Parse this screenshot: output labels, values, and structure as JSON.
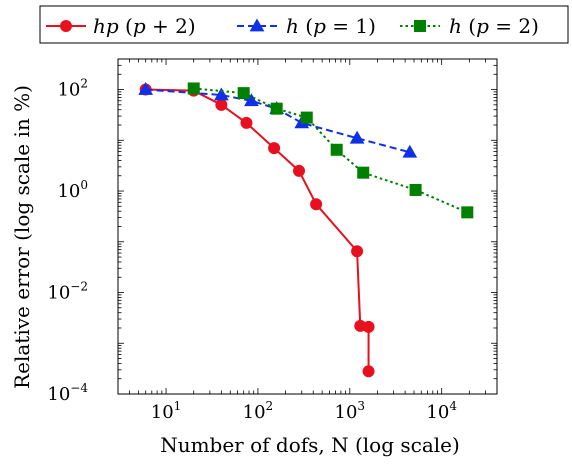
{
  "chart_data": {
    "type": "line",
    "xlabel": "Number of dofs, N (log scale)",
    "ylabel": "Relative error (log scale in %)",
    "xscale": "log",
    "yscale": "log",
    "xlim": [
      3,
      40000
    ],
    "ylim": [
      0.0001,
      400
    ],
    "xticks": [
      {
        "value": 10,
        "base": "10",
        "exp": "1"
      },
      {
        "value": 100,
        "base": "10",
        "exp": "2"
      },
      {
        "value": 1000,
        "base": "10",
        "exp": "3"
      },
      {
        "value": 10000,
        "base": "10",
        "exp": "4"
      }
    ],
    "yticks": [
      {
        "value": 0.0001,
        "base": "10",
        "exp": "−4"
      },
      {
        "value": 0.01,
        "base": "10",
        "exp": "−2"
      },
      {
        "value": 1,
        "base": "10",
        "exp": "0"
      },
      {
        "value": 100,
        "base": "10",
        "exp": "2"
      }
    ],
    "legend_position": "top",
    "grid": false,
    "series": [
      {
        "name_parts": [
          {
            "text": "hp",
            "italic": true
          },
          {
            "text": " (",
            "italic": false
          },
          {
            "text": "p",
            "italic": true
          },
          {
            "text": " + 2)",
            "italic": false
          }
        ],
        "color": "#e8101e",
        "marker": "circle",
        "dash": "solid",
        "points": [
          [
            6,
            100
          ],
          [
            20,
            95
          ],
          [
            40,
            50
          ],
          [
            75,
            22
          ],
          [
            150,
            7
          ],
          [
            280,
            2.5
          ],
          [
            430,
            0.55
          ],
          [
            1200,
            0.065
          ],
          [
            1300,
            0.0022
          ],
          [
            1600,
            0.0021
          ],
          [
            1600,
            0.00028
          ]
        ]
      },
      {
        "name_parts": [
          {
            "text": "h",
            "italic": true
          },
          {
            "text": " (",
            "italic": false
          },
          {
            "text": "p",
            "italic": true
          },
          {
            "text": " = 1)",
            "italic": false
          }
        ],
        "color": "#1030e8",
        "marker": "triangle",
        "dash": "dashed",
        "points": [
          [
            6,
            100
          ],
          [
            40,
            78
          ],
          [
            85,
            60
          ],
          [
            160,
            42
          ],
          [
            300,
            22
          ],
          [
            1200,
            11
          ],
          [
            4500,
            5.8
          ]
        ]
      },
      {
        "name_parts": [
          {
            "text": "h",
            "italic": true
          },
          {
            "text": " (",
            "italic": false
          },
          {
            "text": "p",
            "italic": true
          },
          {
            "text": " = 2)",
            "italic": false
          }
        ],
        "color": "#008000",
        "marker": "square",
        "dash": "dotted",
        "points": [
          [
            20,
            105
          ],
          [
            70,
            85
          ],
          [
            160,
            42
          ],
          [
            340,
            28
          ],
          [
            720,
            6.5
          ],
          [
            1400,
            2.3
          ],
          [
            5200,
            1.05
          ],
          [
            19000,
            0.38
          ]
        ]
      }
    ]
  }
}
